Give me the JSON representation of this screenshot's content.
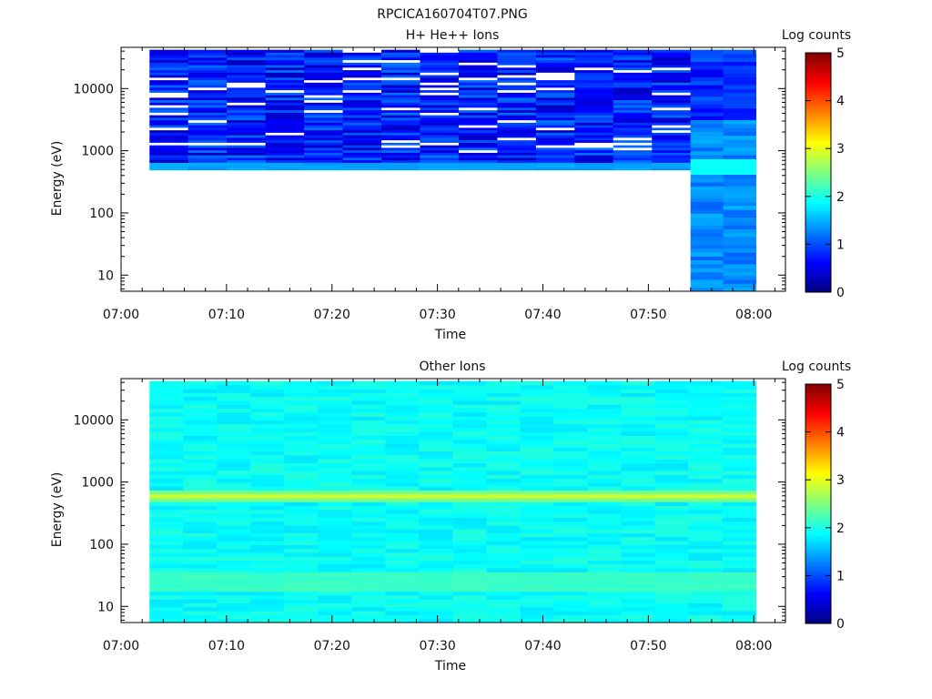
{
  "figure": {
    "title": "RPCICA160704T07.PNG"
  },
  "chart_data": [
    {
      "type": "heatmap",
      "title": "H+ He++ Ions",
      "xlabel": "Time",
      "ylabel": "Energy (eV)",
      "x_ticks": [
        "07:00",
        "07:10",
        "07:20",
        "07:30",
        "07:40",
        "07:50",
        "08:00"
      ],
      "x_range_minutes": [
        0,
        63
      ],
      "y_scale": "log",
      "y_ticks": [
        10,
        100,
        1000,
        10000
      ],
      "y_tick_labels": [
        "10",
        "100",
        "1000",
        "10000"
      ],
      "y_range": [
        5.5,
        46000
      ],
      "colorbar": {
        "label": "Log counts",
        "ticks": [
          "0",
          "1",
          "2",
          "3",
          "4",
          "5"
        ],
        "range": [
          0,
          5
        ],
        "colormap": "jet"
      },
      "data_time_range_minutes": [
        2.7,
        60.2
      ],
      "segments": [
        {
          "t_start_min": 2.7,
          "t_end_min": 54.0,
          "energy_range_ev": [
            490,
            42000
          ],
          "log_counts_range": [
            0.3,
            1.2
          ],
          "low_energy_edge_ev": 700,
          "low_energy_edge_log_counts": 1.5
        },
        {
          "t_start_min": 54.0,
          "t_end_min": 60.2,
          "energy_range_ev": [
            5.5,
            42000
          ],
          "log_counts_range": [
            1.1,
            1.5
          ]
        }
      ]
    },
    {
      "type": "heatmap",
      "title": "Other Ions",
      "xlabel": "Time",
      "ylabel": "Energy (eV)",
      "x_ticks": [
        "07:00",
        "07:10",
        "07:20",
        "07:30",
        "07:40",
        "07:50",
        "08:00"
      ],
      "x_range_minutes": [
        0,
        63
      ],
      "y_scale": "log",
      "y_ticks": [
        10,
        100,
        1000,
        10000
      ],
      "y_tick_labels": [
        "10",
        "100",
        "1000",
        "10000"
      ],
      "y_range": [
        5.5,
        46000
      ],
      "colorbar": {
        "label": "Log counts",
        "ticks": [
          "0",
          "1",
          "2",
          "3",
          "4",
          "5"
        ],
        "range": [
          0,
          5
        ],
        "colormap": "jet"
      },
      "data_time_range_minutes": [
        2.7,
        60.2
      ],
      "background_log_counts": 1.9,
      "bands": [
        {
          "energy_center_ev": 580,
          "log_counts": 2.9
        },
        {
          "energy_center_ev": 25,
          "log_counts": 2.2
        }
      ]
    }
  ]
}
